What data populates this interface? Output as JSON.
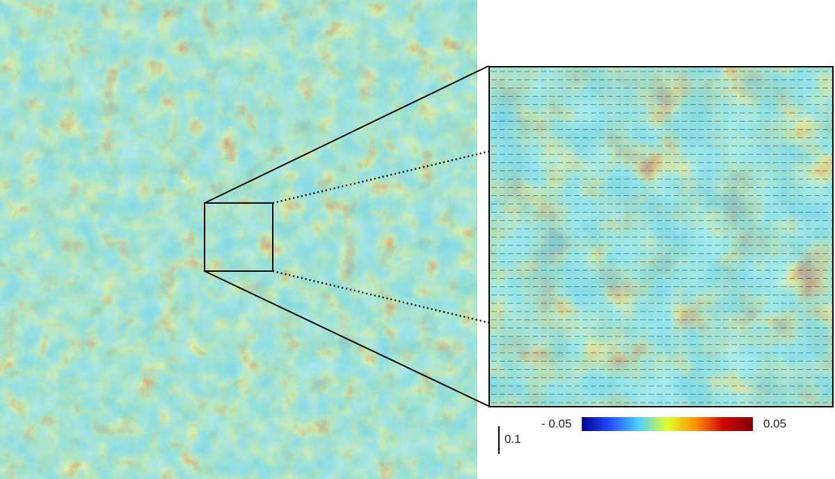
{
  "colorbar": {
    "min_label": "- 0.05",
    "max_label": "0.05",
    "colors": [
      "#00008f",
      "#1f4fff",
      "#4fcfff",
      "#dfff2f",
      "#ff8f00",
      "#cf0000",
      "#7f0000"
    ]
  },
  "scale_bar": {
    "label": "0.1"
  },
  "palette": {
    "background_cyan": "#6fd3e8",
    "blue": "#3a8ee6",
    "yellow": "#e8e860",
    "orange": "#ef7a2a",
    "red": "#c81c10",
    "dark_red": "#8a0e08"
  },
  "zoom_box": {
    "style": "solid-black-square",
    "connector_style": "solid-and-dotted"
  }
}
